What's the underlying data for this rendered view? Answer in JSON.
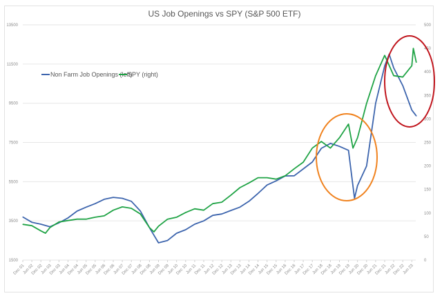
{
  "chart_data": {
    "type": "line",
    "title": "US Job Openings vs SPY (S&P 500 ETF)",
    "x_tick_labels": [
      "Dec 01",
      "Jun 02",
      "Dec 02",
      "Jun 03",
      "Dec 03",
      "Jun 04",
      "Dec 04",
      "Jun 05",
      "Dec 05",
      "Jun 06",
      "Dec 06",
      "Jun 07",
      "Dec 07",
      "Jun 08",
      "Dec 08",
      "Jun 09",
      "Dec 09",
      "Jun 10",
      "Dec 10",
      "Jun 11",
      "Dec 11",
      "Jun 12",
      "Dec 12",
      "Jun 13",
      "Dec 13",
      "Jun 14",
      "Dec 14",
      "Jun 15",
      "Dec 15",
      "Jun 16",
      "Dec 16",
      "Jun 17",
      "Dec 17",
      "Jun 18",
      "Dec 18",
      "Jun 19",
      "Dec 19",
      "Jun 20",
      "Dec 20",
      "Jun 21",
      "Dec 21",
      "Jun 22",
      "Dec 22",
      "Jun 23"
    ],
    "y_left": {
      "range": [
        1500,
        13500
      ],
      "ticks": [
        "1500",
        "3500",
        "5500",
        "7500",
        "9500",
        "11500",
        "13500"
      ]
    },
    "y_right": {
      "range": [
        0,
        500
      ],
      "ticks": [
        "0",
        "50",
        "100",
        "150",
        "200",
        "250",
        "300",
        "350",
        "400",
        "450",
        "500"
      ]
    },
    "grid": true,
    "legend_position": "top-left",
    "series": [
      {
        "name": "Non Farm Job Openings (left)",
        "axis": "left",
        "color": "#3c64ad",
        "x": [
          "2001-12",
          "2002-06",
          "2002-12",
          "2003-06",
          "2003-12",
          "2004-06",
          "2004-12",
          "2005-06",
          "2005-12",
          "2006-06",
          "2006-12",
          "2007-06",
          "2007-12",
          "2008-06",
          "2008-12",
          "2009-06",
          "2009-12",
          "2010-06",
          "2010-12",
          "2011-06",
          "2011-12",
          "2012-06",
          "2012-12",
          "2013-06",
          "2013-12",
          "2014-06",
          "2014-12",
          "2015-06",
          "2015-12",
          "2016-06",
          "2016-12",
          "2017-06",
          "2017-12",
          "2018-06",
          "2018-12",
          "2019-06",
          "2019-12",
          "2020-04",
          "2020-06",
          "2020-12",
          "2021-06",
          "2021-12",
          "2022-03",
          "2022-06",
          "2022-12",
          "2023-06",
          "2023-09"
        ],
        "values": [
          3700,
          3430,
          3330,
          3200,
          3400,
          3650,
          4000,
          4200,
          4380,
          4600,
          4700,
          4650,
          4500,
          4000,
          3150,
          2380,
          2500,
          2870,
          3050,
          3330,
          3500,
          3780,
          3850,
          4030,
          4200,
          4500,
          4900,
          5330,
          5540,
          5790,
          5800,
          6150,
          6500,
          7200,
          7450,
          7300,
          7100,
          4650,
          5300,
          6300,
          9500,
          11400,
          12000,
          11300,
          10400,
          9150,
          8850
        ]
      },
      {
        "name": "SPY (right)",
        "axis": "right",
        "color": "#1fa345",
        "x": [
          "2001-12",
          "2002-06",
          "2002-12",
          "2003-03",
          "2003-06",
          "2003-12",
          "2004-06",
          "2004-12",
          "2005-06",
          "2005-12",
          "2006-06",
          "2006-12",
          "2007-06",
          "2007-12",
          "2008-06",
          "2008-12",
          "2009-03",
          "2009-06",
          "2009-12",
          "2010-06",
          "2010-12",
          "2011-06",
          "2011-12",
          "2012-06",
          "2012-12",
          "2013-06",
          "2013-12",
          "2014-06",
          "2014-12",
          "2015-06",
          "2015-12",
          "2016-06",
          "2016-12",
          "2017-06",
          "2017-12",
          "2018-06",
          "2018-12",
          "2019-06",
          "2019-12",
          "2020-03",
          "2020-06",
          "2020-12",
          "2021-06",
          "2021-12",
          "2022-06",
          "2022-12",
          "2023-06",
          "2023-07",
          "2023-09"
        ],
        "values": [
          76,
          73,
          62,
          57,
          69,
          81,
          84,
          87,
          87,
          91,
          94,
          106,
          113,
          110,
          98,
          69,
          60,
          72,
          87,
          91,
          101,
          109,
          106,
          120,
          123,
          138,
          154,
          164,
          175,
          175,
          172,
          179,
          194,
          208,
          238,
          252,
          238,
          260,
          289,
          238,
          260,
          333,
          392,
          435,
          392,
          389,
          413,
          450,
          420
        ]
      }
    ],
    "annotations": [
      {
        "shape": "ellipse",
        "color": "#f0821e"
      },
      {
        "shape": "ellipse",
        "color": "#c0141c"
      }
    ]
  }
}
